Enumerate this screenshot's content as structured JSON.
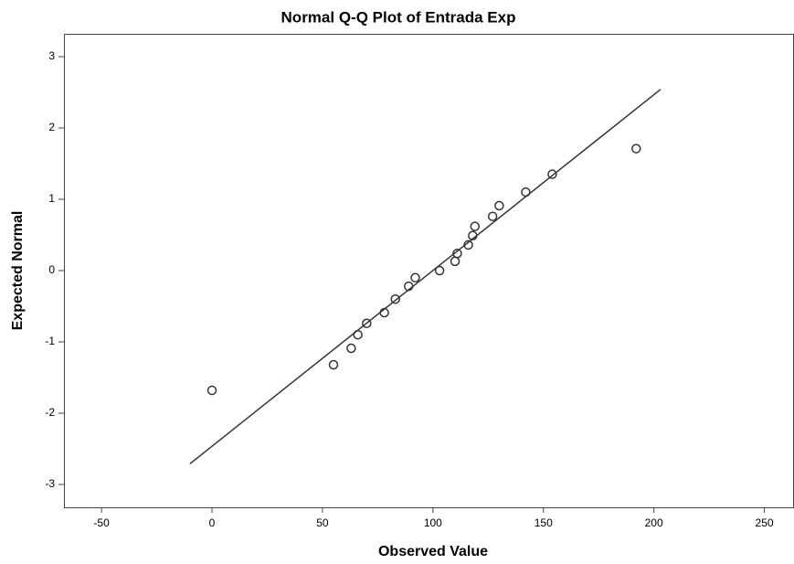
{
  "chart_data": {
    "type": "scatter",
    "title": "Normal Q-Q Plot of Entrada Exp",
    "x_label": "Observed Value",
    "y_label": "Expected Normal",
    "x": [
      0,
      55,
      63,
      66,
      70,
      78,
      83,
      89,
      92,
      103,
      110,
      111,
      116,
      118,
      119,
      127,
      130,
      142,
      154,
      192
    ],
    "series": [
      {
        "color": "#333333",
        "values": [
          -1.68,
          -1.32,
          -1.09,
          -0.9,
          -0.74,
          -0.59,
          -0.4,
          -0.22,
          -0.1,
          0,
          0.13,
          0.24,
          0.36,
          0.49,
          0.62,
          0.76,
          0.91,
          1.1,
          1.35,
          1.71
        ]
      }
    ],
    "fit_line": {
      "x": [
        -10,
        203
      ],
      "y": [
        -2.71,
        2.54
      ],
      "color": "#333333"
    },
    "xlim": [
      -67,
      263
    ],
    "ylim": [
      -3.32,
      3.32
    ],
    "xticks": [
      -50,
      0,
      50,
      100,
      150,
      200,
      250
    ],
    "yticks": [
      -3,
      -2,
      -1,
      0,
      1,
      2,
      3
    ],
    "grid": false
  }
}
